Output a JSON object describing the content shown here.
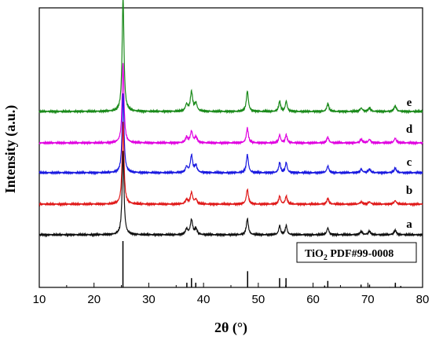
{
  "chart_data": {
    "type": "line",
    "xlabel": "2θ (°)",
    "ylabel": "Intensity (a.u.)",
    "xlim": [
      10,
      80
    ],
    "x_ticks": [
      "10",
      "20",
      "30",
      "40",
      "50",
      "60",
      "70",
      "80"
    ],
    "grid": false,
    "series_peak_positions_2theta": [
      25.3,
      36.9,
      37.8,
      38.6,
      48.0,
      53.9,
      55.1,
      62.7,
      68.8,
      70.3,
      75.0
    ],
    "series": [
      {
        "name": "e",
        "color": "#1a8a1a",
        "peak_heights": [
          1.0,
          0.06,
          0.17,
          0.07,
          0.18,
          0.09,
          0.09,
          0.07,
          0.03,
          0.03,
          0.05
        ]
      },
      {
        "name": "d",
        "color": "#e000e0",
        "peak_heights": [
          0.7,
          0.05,
          0.1,
          0.05,
          0.13,
          0.07,
          0.07,
          0.05,
          0.03,
          0.03,
          0.04
        ]
      },
      {
        "name": "c",
        "color": "#1a1ae0",
        "peak_heights": [
          0.7,
          0.05,
          0.15,
          0.06,
          0.16,
          0.09,
          0.09,
          0.06,
          0.03,
          0.03,
          0.04
        ]
      },
      {
        "name": "b",
        "color": "#e01a1a",
        "peak_heights": [
          0.72,
          0.04,
          0.1,
          0.04,
          0.13,
          0.07,
          0.07,
          0.05,
          0.02,
          0.02,
          0.03
        ]
      },
      {
        "name": "a",
        "color": "#111111",
        "peak_heights": [
          0.73,
          0.05,
          0.13,
          0.05,
          0.14,
          0.08,
          0.08,
          0.06,
          0.03,
          0.03,
          0.04
        ]
      }
    ],
    "reference": {
      "label": "TiO",
      "label_sub": "2",
      "label_suffix": " PDF#99-0008",
      "color": "#000000",
      "lines": [
        {
          "x": 25.28,
          "intensity": 100
        },
        {
          "x": 36.95,
          "intensity": 10
        },
        {
          "x": 37.8,
          "intensity": 20
        },
        {
          "x": 38.58,
          "intensity": 10
        },
        {
          "x": 48.05,
          "intensity": 35
        },
        {
          "x": 53.89,
          "intensity": 20
        },
        {
          "x": 55.06,
          "intensity": 20
        },
        {
          "x": 62.12,
          "intensity": 4
        },
        {
          "x": 62.69,
          "intensity": 14
        },
        {
          "x": 68.76,
          "intensity": 6
        },
        {
          "x": 70.31,
          "intensity": 6
        },
        {
          "x": 74.03,
          "intensity": 1
        },
        {
          "x": 75.03,
          "intensity": 10
        },
        {
          "x": 76.02,
          "intensity": 3
        }
      ]
    }
  }
}
